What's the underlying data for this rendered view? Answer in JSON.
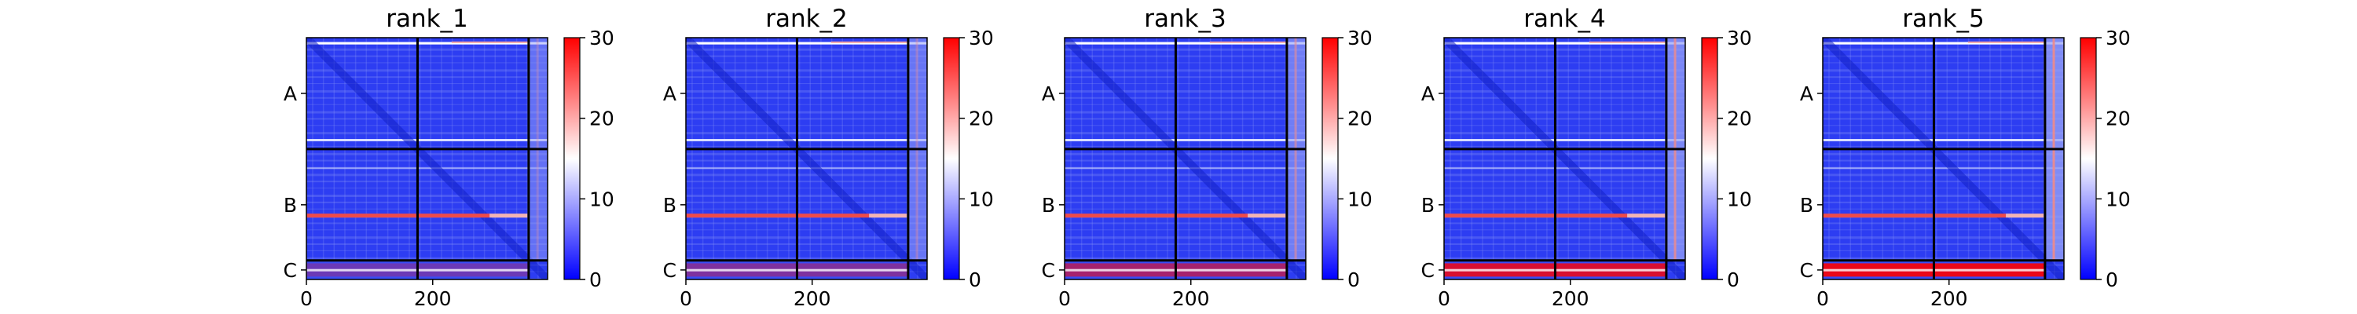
{
  "chart_data": [
    {
      "type": "heatmap",
      "title": "rank_1",
      "xticks": [
        0,
        200
      ],
      "yticks": [
        "A",
        "B",
        "C"
      ],
      "colorbar": {
        "ticks": [
          0,
          10,
          20,
          30
        ],
        "range": [
          0,
          30
        ]
      },
      "colormap": "bwr",
      "chain_lengths": {
        "A": 176,
        "B": 176,
        "C": 30
      },
      "matrix_size": 382
    },
    {
      "type": "heatmap",
      "title": "rank_2",
      "xticks": [
        0,
        200
      ],
      "yticks": [
        "A",
        "B",
        "C"
      ],
      "colorbar": {
        "ticks": [
          0,
          10,
          20,
          30
        ],
        "range": [
          0,
          30
        ]
      },
      "colormap": "bwr",
      "chain_lengths": {
        "A": 176,
        "B": 176,
        "C": 30
      },
      "matrix_size": 382
    },
    {
      "type": "heatmap",
      "title": "rank_3",
      "xticks": [
        0,
        200
      ],
      "yticks": [
        "A",
        "B",
        "C"
      ],
      "colorbar": {
        "ticks": [
          0,
          10,
          20,
          30
        ],
        "range": [
          0,
          30
        ]
      },
      "colormap": "bwr",
      "chain_lengths": {
        "A": 176,
        "B": 176,
        "C": 30
      },
      "matrix_size": 382
    },
    {
      "type": "heatmap",
      "title": "rank_4",
      "xticks": [
        0,
        200
      ],
      "yticks": [
        "A",
        "B",
        "C"
      ],
      "colorbar": {
        "ticks": [
          0,
          10,
          20,
          30
        ],
        "range": [
          0,
          30
        ]
      },
      "colormap": "bwr",
      "chain_lengths": {
        "A": 176,
        "B": 176,
        "C": 30
      },
      "matrix_size": 382
    },
    {
      "type": "heatmap",
      "title": "rank_5",
      "xticks": [
        0,
        200
      ],
      "yticks": [
        "A",
        "B",
        "C"
      ],
      "colorbar": {
        "ticks": [
          0,
          10,
          20,
          30
        ],
        "range": [
          0,
          30
        ]
      },
      "colormap": "bwr",
      "chain_lengths": {
        "A": 176,
        "B": 176,
        "C": 30
      },
      "matrix_size": 382
    }
  ],
  "colors": {
    "low": "#0000ff",
    "mid": "#ffffff",
    "high": "#ff0000",
    "divider": "#000000"
  }
}
